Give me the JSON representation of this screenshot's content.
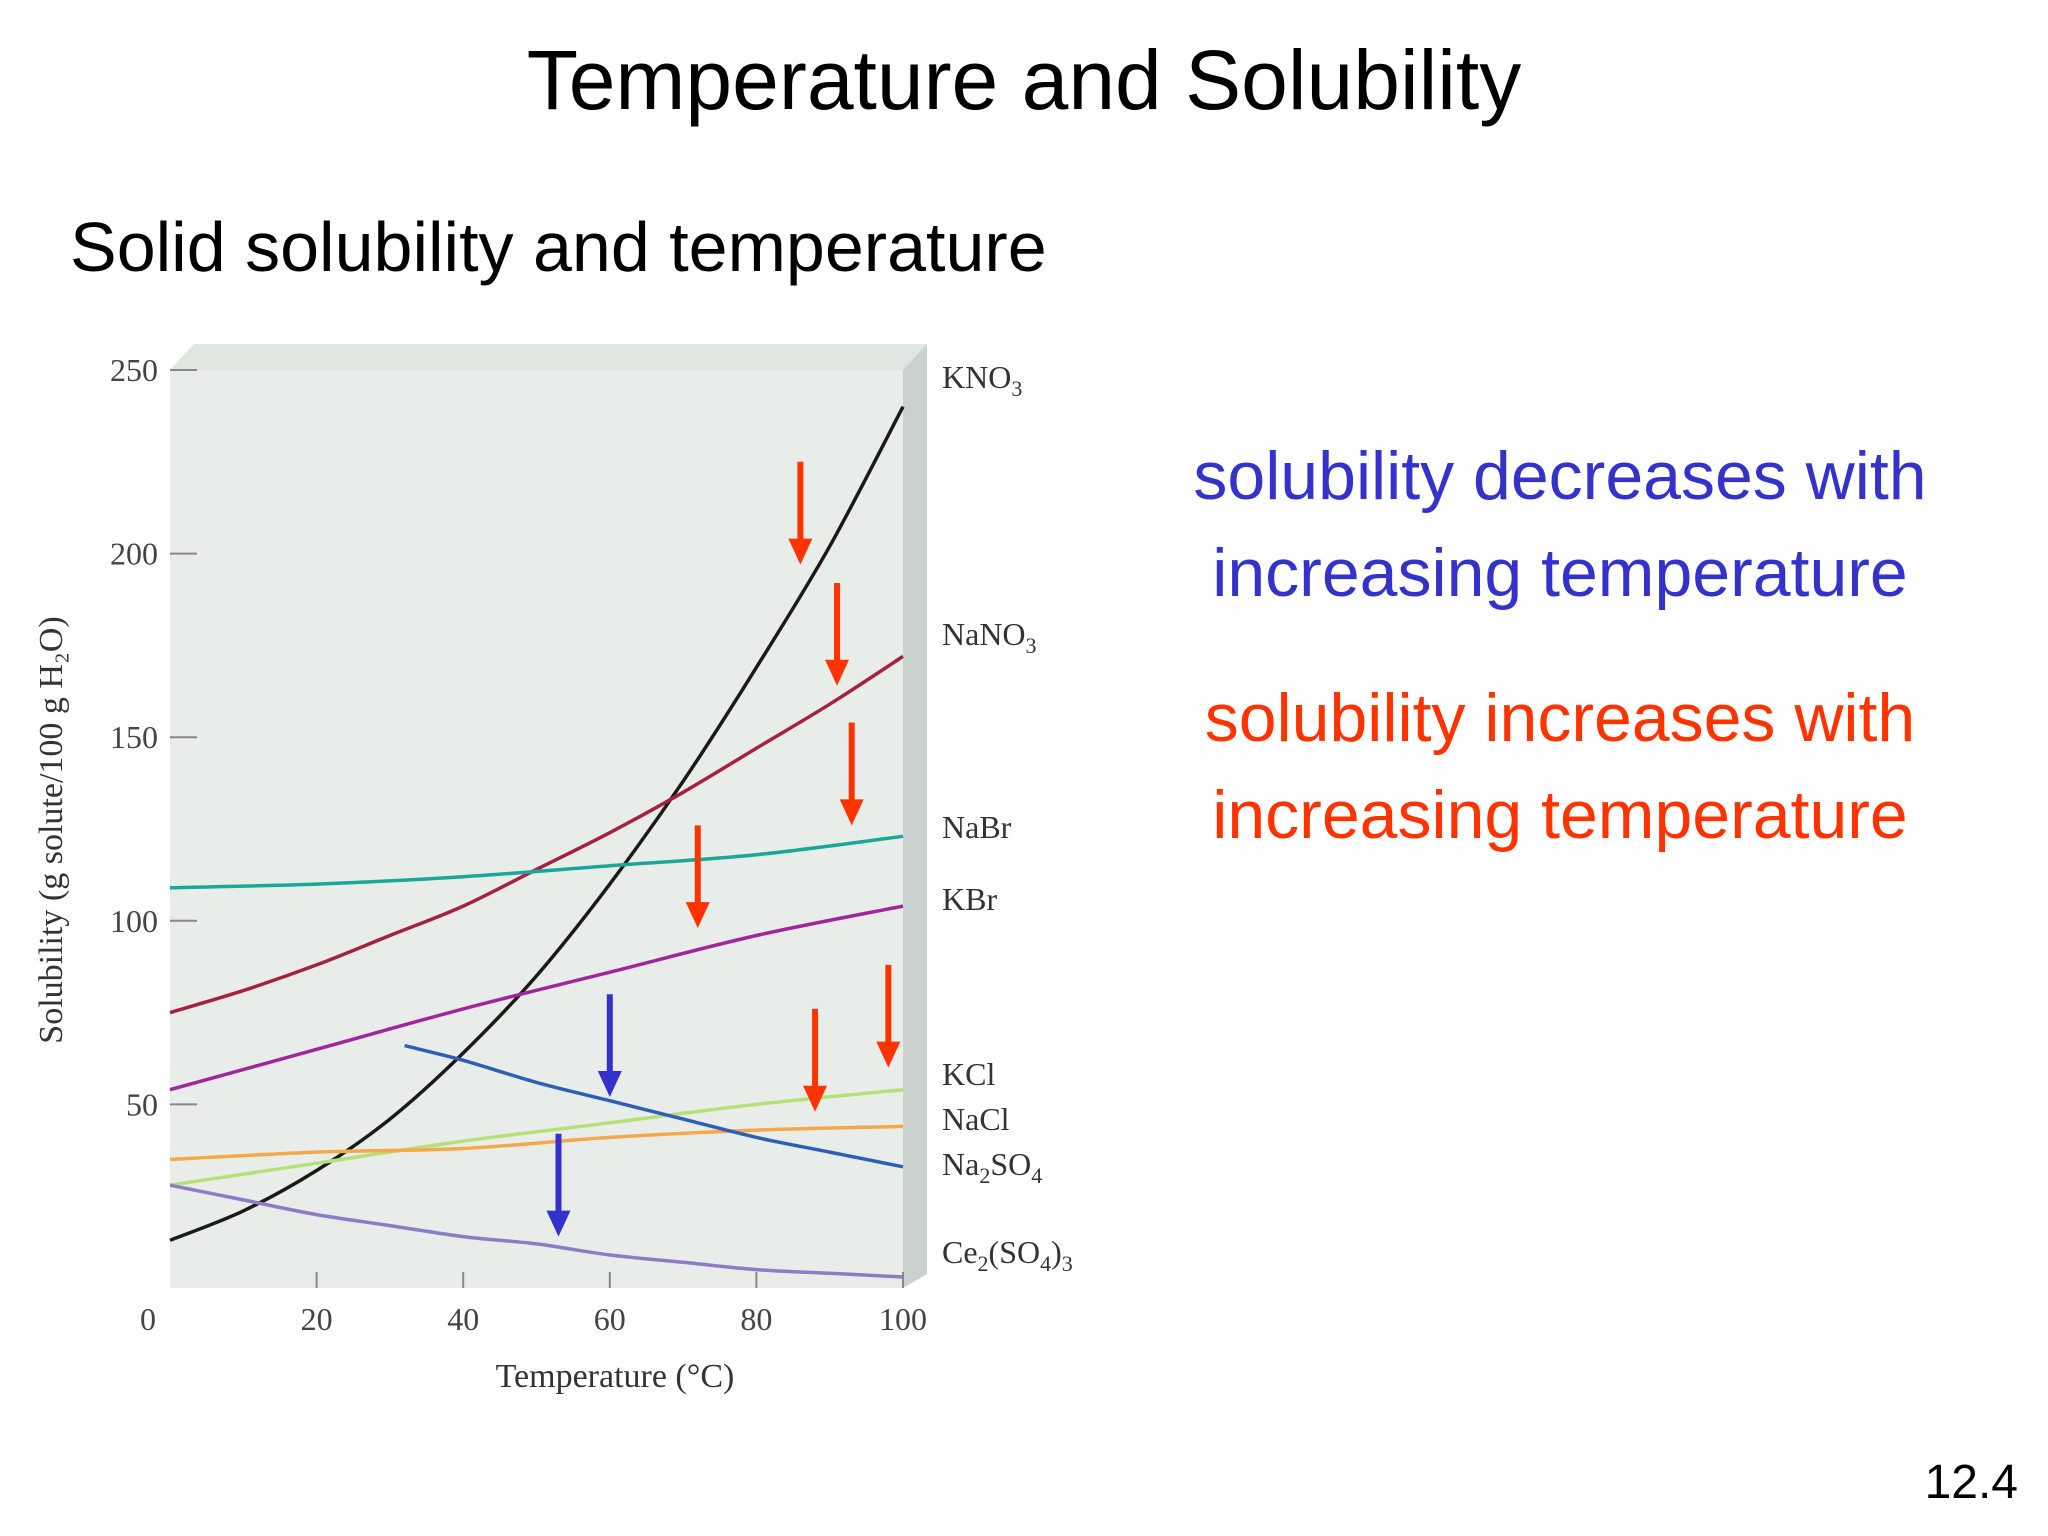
{
  "slide": {
    "title": "Temperature and Solubility",
    "subtitle": "Solid solubility and temperature",
    "note_decrease": "solubility decreases with increasing temperature",
    "note_increase": "solubility increases with increasing temperature",
    "number": "12.4"
  },
  "colors": {
    "decrease": "#3333cc",
    "increase": "#ff3300",
    "plot_background": "#e9ede9",
    "plot_wall": "#c9d2cc"
  },
  "chart_data": {
    "type": "line",
    "xlabel": "Temperature (°C)",
    "ylabel": "Solubility (g solute/100 g H₂O)",
    "xlim": [
      0,
      100
    ],
    "ylim": [
      0,
      250
    ],
    "x_ticks": [
      0,
      20,
      40,
      60,
      80,
      100
    ],
    "y_ticks": [
      50,
      100,
      150,
      200,
      250
    ],
    "series": [
      {
        "name": "KNO₃",
        "color": "#1a1a1a",
        "x": [
          0,
          10,
          20,
          30,
          40,
          50,
          60,
          70,
          80,
          90,
          100
        ],
        "y": [
          13,
          21,
          32,
          46,
          64,
          85,
          110,
          138,
          169,
          202,
          240
        ]
      },
      {
        "name": "NaNO₃",
        "color": "#a52140",
        "x": [
          0,
          10,
          20,
          30,
          40,
          50,
          60,
          70,
          80,
          90,
          100
        ],
        "y": [
          75,
          81,
          88,
          96,
          104,
          114,
          124,
          135,
          147,
          159,
          172
        ]
      },
      {
        "name": "NaBr",
        "color": "#1aa79a",
        "x": [
          0,
          20,
          40,
          60,
          80,
          100
        ],
        "y": [
          109,
          110,
          112,
          115,
          118,
          123
        ]
      },
      {
        "name": "KBr",
        "color": "#a0279a",
        "x": [
          0,
          20,
          40,
          60,
          80,
          100
        ],
        "y": [
          54,
          65,
          76,
          86,
          96,
          104
        ]
      },
      {
        "name": "KCl",
        "color": "#b5e078",
        "x": [
          0,
          20,
          40,
          60,
          80,
          100
        ],
        "y": [
          28,
          34,
          40,
          45,
          50,
          54
        ]
      },
      {
        "name": "NaCl",
        "color": "#f4a84a",
        "x": [
          0,
          20,
          40,
          60,
          80,
          100
        ],
        "y": [
          35,
          37,
          38,
          41,
          43,
          44
        ]
      },
      {
        "name": "Na₂SO₄",
        "color": "#2e5fb5",
        "x": [
          32,
          40,
          50,
          60,
          70,
          80,
          90,
          100
        ],
        "y": [
          66,
          62,
          56,
          51,
          46,
          41,
          37,
          33
        ]
      },
      {
        "name": "Ce₂(SO₄)₃",
        "color": "#8d7bc4",
        "x": [
          0,
          10,
          20,
          30,
          40,
          50,
          60,
          70,
          80,
          90,
          100
        ],
        "y": [
          28,
          24,
          20,
          17,
          14,
          12,
          9,
          7,
          5,
          4,
          3
        ]
      }
    ],
    "arrows": [
      {
        "color": "increase",
        "x": 86,
        "y_from": 225,
        "y_to": 197
      },
      {
        "color": "increase",
        "x": 91,
        "y_from": 192,
        "y_to": 164
      },
      {
        "color": "increase",
        "x": 93,
        "y_from": 154,
        "y_to": 126
      },
      {
        "color": "increase",
        "x": 72,
        "y_from": 126,
        "y_to": 98
      },
      {
        "color": "increase",
        "x": 98,
        "y_from": 88,
        "y_to": 60
      },
      {
        "color": "increase",
        "x": 88,
        "y_from": 76,
        "y_to": 48
      },
      {
        "color": "decrease",
        "x": 60,
        "y_from": 80,
        "y_to": 52
      },
      {
        "color": "decrease",
        "x": 53,
        "y_from": 42,
        "y_to": 14
      }
    ]
  }
}
